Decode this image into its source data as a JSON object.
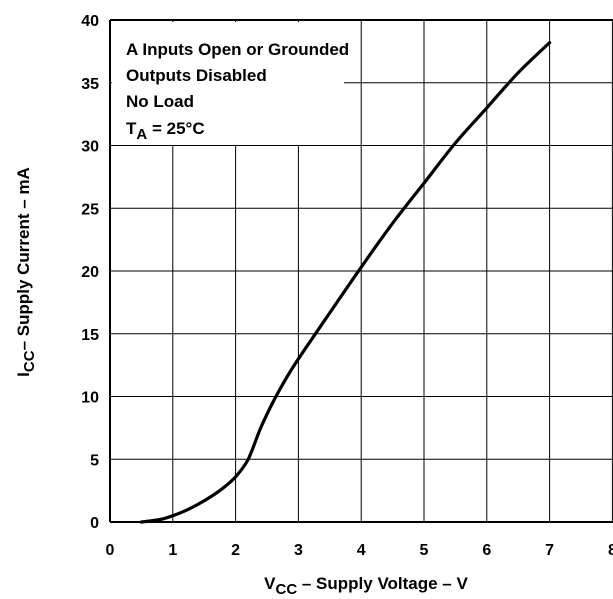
{
  "chart_data": {
    "type": "line",
    "title": "",
    "xlabel": {
      "main": "V",
      "sub": "CC",
      "rest": " – Supply Voltage – V"
    },
    "ylabel": {
      "main": "I",
      "sub": "CC",
      "rest": "– Supply Current – mA"
    },
    "xlim": [
      0,
      8
    ],
    "ylim": [
      0,
      40
    ],
    "x_ticks": [
      "0",
      "1",
      "2",
      "3",
      "4",
      "5",
      "6",
      "7",
      "8"
    ],
    "y_ticks": [
      "0",
      "5",
      "10",
      "15",
      "20",
      "25",
      "30",
      "35",
      "40"
    ],
    "grid": true,
    "series": [
      {
        "x": [
          0.5,
          0.8,
          1.0,
          1.2,
          1.4,
          1.6,
          1.8,
          2.0,
          2.2,
          2.4,
          2.6,
          2.8,
          3.0,
          3.3,
          3.6,
          4.0,
          4.5,
          5.0,
          5.5,
          6.0,
          6.5,
          7.0
        ],
        "y": [
          0.0,
          0.2,
          0.5,
          0.9,
          1.4,
          2.0,
          2.7,
          3.6,
          5.0,
          7.5,
          9.6,
          11.4,
          13.0,
          15.2,
          17.4,
          20.3,
          23.8,
          27.0,
          30.2,
          33.0,
          35.8,
          38.2
        ]
      }
    ],
    "annotations": [
      {
        "text": "A Inputs Open or Grounded"
      },
      {
        "text": "Outputs Disabled"
      },
      {
        "text": "No Load"
      },
      {
        "main": "T",
        "sub": "A",
        "rest": " = 25°C"
      }
    ]
  }
}
